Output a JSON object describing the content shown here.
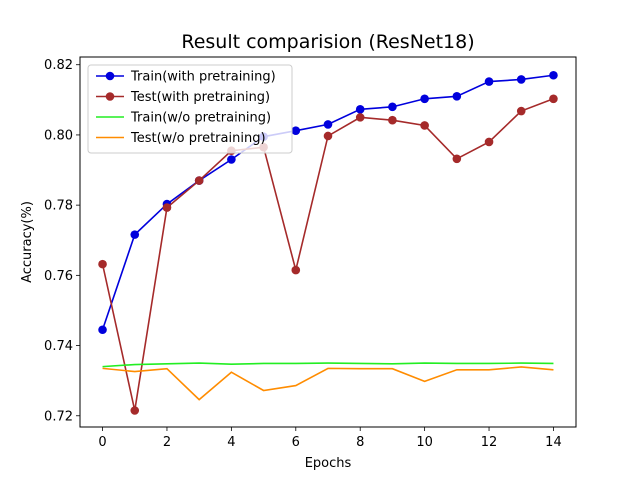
{
  "chart_data": {
    "type": "line",
    "title": "Result comparision (ResNet18)",
    "xlabel": "Epochs",
    "ylabel": "Accuracy(%)",
    "xlim": [
      -0.7,
      14.7
    ],
    "ylim": [
      0.7168,
      0.8222
    ],
    "xticks": [
      0,
      2,
      4,
      6,
      8,
      10,
      12,
      14
    ],
    "yticks": [
      0.72,
      0.74,
      0.76,
      0.78,
      0.8,
      0.82
    ],
    "yticks_labels": [
      "0.72",
      "0.74",
      "0.76",
      "0.78",
      "0.80",
      "0.82"
    ],
    "legend_position": "upper-left",
    "grid": false,
    "x": [
      0,
      1,
      2,
      3,
      4,
      5,
      6,
      7,
      8,
      9,
      10,
      11,
      12,
      13,
      14
    ],
    "series": [
      {
        "name": "Train(with pretraining)",
        "color": "#0000dd",
        "marker": true,
        "values": [
          0.7445,
          0.7716,
          0.7803,
          0.787,
          0.793,
          0.7995,
          0.8012,
          0.803,
          0.8073,
          0.808,
          0.8103,
          0.811,
          0.8152,
          0.8158,
          0.817
        ]
      },
      {
        "name": "Test(with pretraining)",
        "color": "#a52a2a",
        "marker": true,
        "values": [
          0.7632,
          0.7215,
          0.7793,
          0.787,
          0.7955,
          0.7965,
          0.7615,
          0.7997,
          0.805,
          0.8042,
          0.8027,
          0.7932,
          0.798,
          0.8068,
          0.8103
        ]
      },
      {
        "name": "Train(w/o pretraining)",
        "color": "#22ee22",
        "marker": false,
        "values": [
          0.734,
          0.7346,
          0.7348,
          0.735,
          0.7347,
          0.7349,
          0.7349,
          0.735,
          0.7349,
          0.7348,
          0.735,
          0.7349,
          0.7349,
          0.735,
          0.7349
        ]
      },
      {
        "name": "Test(w/o pretraining)",
        "color": "#ff8c00",
        "marker": false,
        "values": [
          0.7335,
          0.7326,
          0.7334,
          0.7246,
          0.7324,
          0.7272,
          0.7286,
          0.7335,
          0.7334,
          0.7334,
          0.7298,
          0.7331,
          0.7331,
          0.7339,
          0.7331
        ]
      }
    ]
  }
}
